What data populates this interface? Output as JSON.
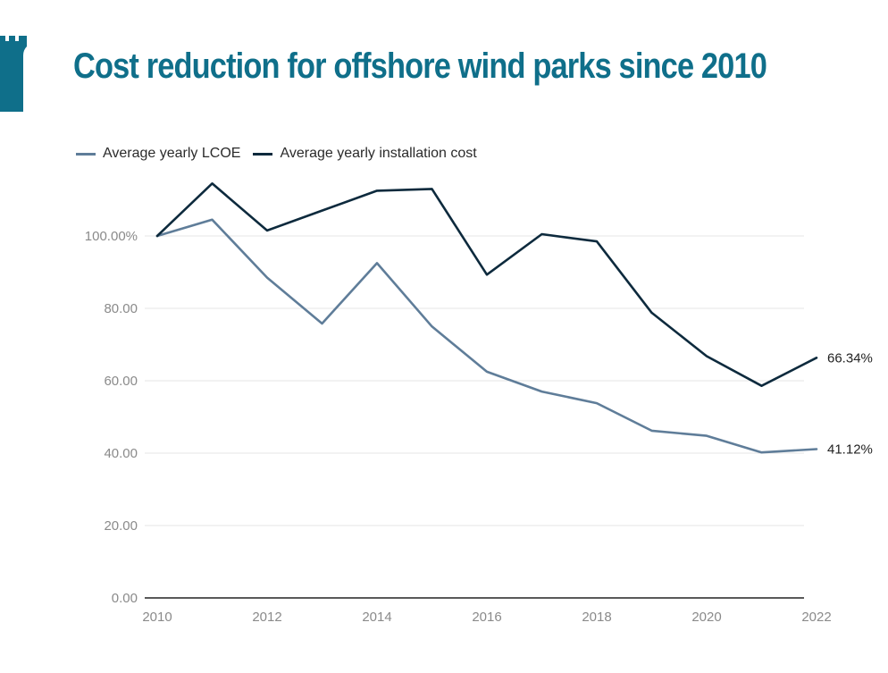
{
  "header": {
    "title": "Cost reduction for offshore wind parks since 2010"
  },
  "brand": {
    "icon": "castle-tower-icon",
    "color": "#0f6f8a"
  },
  "chart_data": {
    "type": "line",
    "x": [
      2010,
      2011,
      2012,
      2013,
      2014,
      2015,
      2016,
      2017,
      2018,
      2019,
      2020,
      2021,
      2022
    ],
    "series": [
      {
        "name": "Average yearly LCOE",
        "color": "#5f7d99",
        "values": [
          100,
          104.5,
          88.5,
          75.8,
          92.5,
          75,
          62.5,
          57,
          53.8,
          46.2,
          44.8,
          40.2,
          41.12
        ],
        "end_label": "41.12%"
      },
      {
        "name": "Average yearly installation cost",
        "color": "#0d2a3d",
        "values": [
          100,
          114.5,
          101.5,
          107,
          112.5,
          113,
          89.3,
          100.5,
          98.5,
          78.8,
          66.8,
          58.6,
          66.34
        ],
        "end_label": "66.34%"
      }
    ],
    "x_tick_labels": [
      "2010",
      "2012",
      "2014",
      "2016",
      "2018",
      "2020",
      "2022"
    ],
    "x_ticks": [
      2010,
      2012,
      2014,
      2016,
      2018,
      2020,
      2022
    ],
    "y_tick_labels": [
      "0.00",
      "20.00",
      "40.00",
      "60.00",
      "80.00",
      "100.00%"
    ],
    "y_ticks": [
      0,
      20,
      40,
      60,
      80,
      100
    ],
    "ylim": [
      0,
      120
    ],
    "xlim": [
      2010,
      2022
    ],
    "grid": true,
    "legend": "top-left",
    "xlabel": "",
    "ylabel": ""
  }
}
